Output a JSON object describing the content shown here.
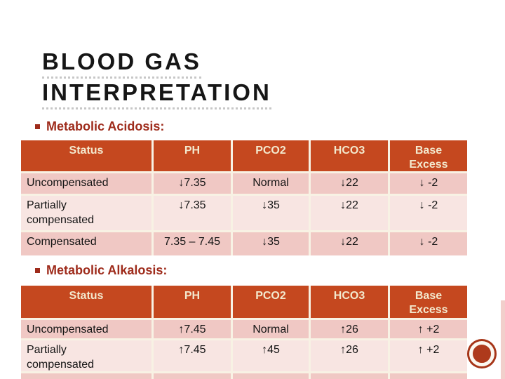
{
  "title": {
    "line1": "BLOOD GAS",
    "line2": "INTERPRETATION"
  },
  "sections": [
    {
      "heading": "Metabolic Acidosis:",
      "table": {
        "headers": [
          "Status",
          "PH",
          "PCO2",
          "HCO3",
          "Base Excess"
        ],
        "rows": [
          [
            "Uncompensated",
            "↓7.35",
            "Normal",
            "↓22",
            "↓ -2"
          ],
          [
            "Partially compensated",
            "↓7.35",
            "↓35",
            "↓22",
            "↓ -2"
          ],
          [
            "Compensated",
            "7.35 – 7.45",
            "↓35",
            "↓22",
            "↓ -2"
          ]
        ]
      }
    },
    {
      "heading": "Metabolic Alkalosis:",
      "table": {
        "headers": [
          "Status",
          "PH",
          "PCO2",
          "HCO3",
          "Base Excess"
        ],
        "rows": [
          [
            "Uncompensated",
            "↑7.45",
            "Normal",
            "↑26",
            "↑ +2"
          ],
          [
            "Partially compensated",
            "↑7.45",
            "↑45",
            "↑26",
            "↑ +2"
          ]
        ]
      }
    }
  ],
  "colors": {
    "table_header_bg": "#c5481f",
    "table_header_text": "#f3e9ce",
    "row_band_dark": "#f0c8c4",
    "row_band_light": "#f8e5e2",
    "section_heading_text": "#9e2b1b",
    "cell_separator": "#f8f2e4",
    "title_text": "#161616",
    "circle_fill": "#ae3a1c"
  }
}
